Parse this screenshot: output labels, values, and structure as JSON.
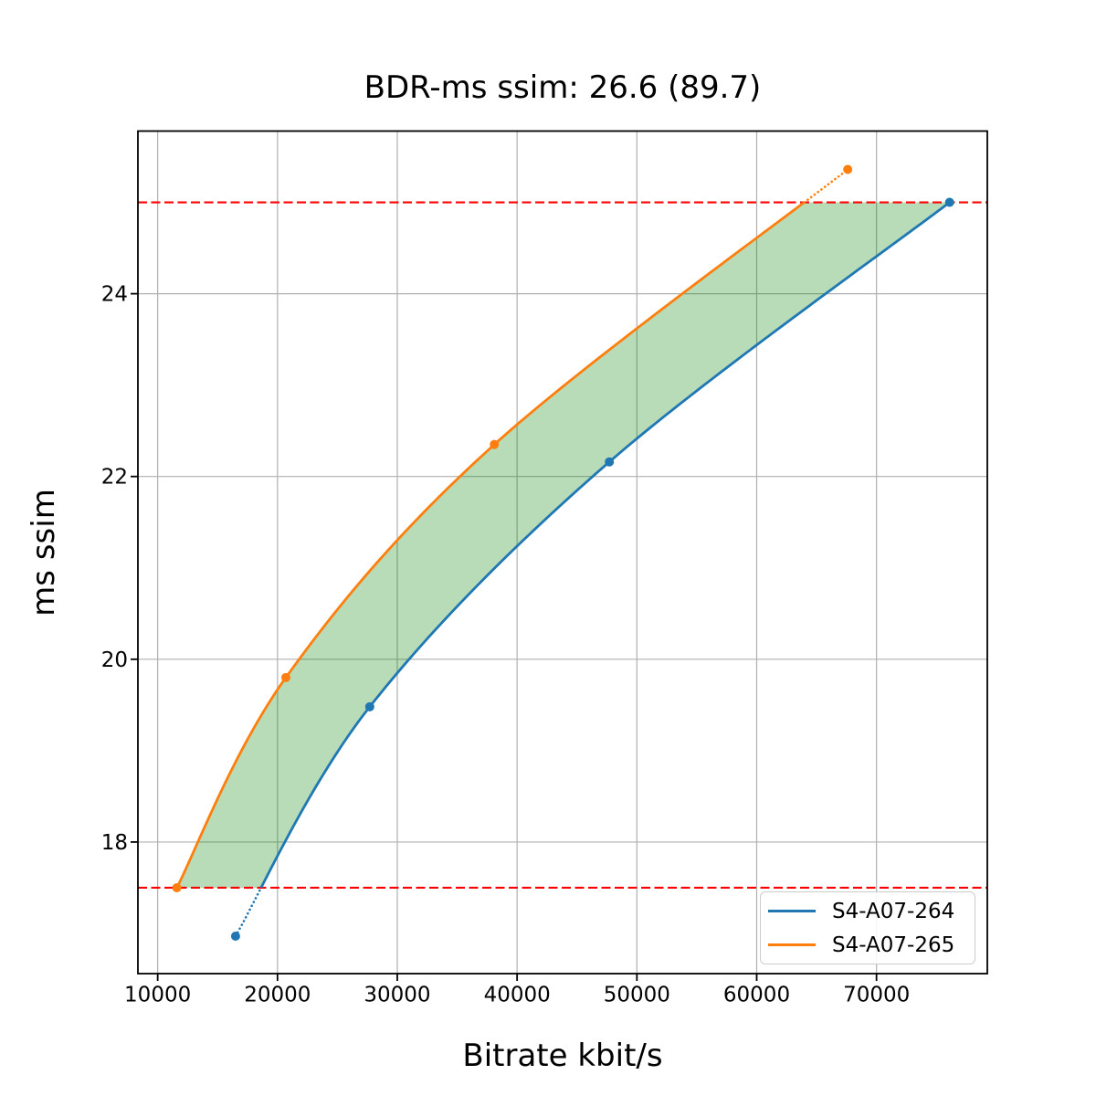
{
  "figure": {
    "title": "BDR-ms ssim: 26.6 (89.7)",
    "background": "#ffffff"
  },
  "chart_data": {
    "type": "line",
    "title": "BDR-ms ssim: 26.6 (89.7)",
    "bdr_values": {
      "primary": 26.6,
      "secondary": 89.7
    },
    "xlabel": "Bitrate kbit/s",
    "ylabel": "ms ssim",
    "xlim": [
      8350,
      79250
    ],
    "ylim": [
      16.56,
      25.78
    ],
    "xticks": [
      10000,
      20000,
      30000,
      40000,
      50000,
      60000,
      70000
    ],
    "yticks": [
      18,
      20,
      22,
      24
    ],
    "grid": true,
    "grid_color": "#b0b0b0",
    "spine_color": "#000000",
    "series": [
      {
        "name": "S4-A07-264",
        "color": "#1f77b4",
        "marker": "circle",
        "points": [
          [
            16500,
            16.97
          ],
          [
            27700,
            19.48
          ],
          [
            47700,
            22.16
          ],
          [
            76100,
            25.0
          ]
        ]
      },
      {
        "name": "S4-A07-265",
        "color": "#ff7f0e",
        "marker": "circle",
        "points": [
          [
            11600,
            17.5
          ],
          [
            20700,
            19.8
          ],
          [
            38100,
            22.35
          ],
          [
            67600,
            25.36
          ]
        ]
      }
    ],
    "overlap_band": {
      "y_min": 17.5,
      "y_max": 25.0,
      "bound_line_color": "#ff0000",
      "bound_line_style": "dashed",
      "fill_color": "#008000",
      "fill_opacity": 0.28,
      "outside_band_line_style": "dotted"
    },
    "legend": {
      "position": "lower right",
      "entries": [
        "S4-A07-264",
        "S4-A07-265"
      ]
    }
  }
}
